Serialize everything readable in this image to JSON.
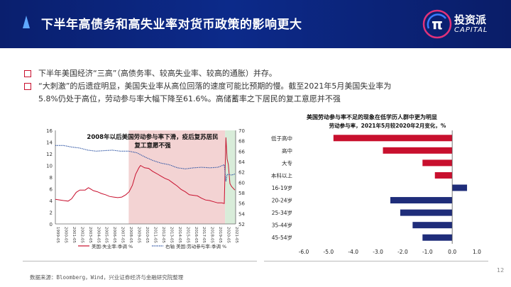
{
  "header": {
    "title": "下半年高债务和高失业率对货币政策的影响更大",
    "logo_cn": "投资派",
    "logo_en": "CAPITAL",
    "logo_mark": "π"
  },
  "bullets": [
    {
      "text": "下半年美国经济“三高”（高债务率、较高失业率、较高的通胀）并存。"
    },
    {
      "text": "“大刺激”的后遗症明显，美国失业率从高位回落的速度可能比预期的慢。截至2021年5月美国失业率为",
      "cont": "5.8%仍处于高位，劳动参与率大幅下降至61.6%。高储蓄率之下居民的复工意愿并不强"
    }
  ],
  "chart_data": [
    {
      "type": "line",
      "title": "2008年以后美国劳动参与率下滑，疫后复苏居民复工意愿不强",
      "x_ticks": [
        "1999-05",
        "2000-05",
        "2001-05",
        "2002-05",
        "2003-05",
        "2004-05",
        "2005-05",
        "2006-05",
        "2007-05",
        "2008-05",
        "2009-05",
        "2010-05",
        "2011-05",
        "2012-05",
        "2013-05",
        "2014-05",
        "2015-05",
        "2016-05",
        "2017-05",
        "2018-05",
        "2019-05",
        "2020-05",
        "2021-05"
      ],
      "y_left_ticks": [
        "0",
        "2",
        "4",
        "6",
        "8",
        "10",
        "12",
        "14",
        "16"
      ],
      "y_right_ticks": [
        "52",
        "54",
        "56",
        "58",
        "60",
        "62",
        "64",
        "66",
        "68",
        "70"
      ],
      "ylim_left": [
        0,
        16
      ],
      "ylim_right": [
        52,
        70
      ],
      "series": [
        {
          "name": "美国:失业率:季调 %",
          "axis": "left",
          "color": "#c8102e",
          "style": "solid",
          "x": [
            1999.33,
            2000.33,
            2000.9,
            2001.33,
            2001.9,
            2002.33,
            2003.0,
            2003.4,
            2004.0,
            2004.5,
            2005.0,
            2005.5,
            2006.0,
            2006.5,
            2007.0,
            2007.5,
            2008.0,
            2008.4,
            2008.8,
            2009.2,
            2009.6,
            2009.8,
            2010.3,
            2010.8,
            2011.3,
            2011.8,
            2012.3,
            2012.8,
            2013.3,
            2013.8,
            2014.3,
            2014.8,
            2015.3,
            2015.8,
            2016.3,
            2016.8,
            2017.3,
            2017.8,
            2018.3,
            2018.8,
            2019.3,
            2019.8,
            2020.1,
            2020.3,
            2020.45,
            2020.6,
            2020.8,
            2021.0,
            2021.2,
            2021.4
          ],
          "y": [
            4.2,
            4.0,
            3.9,
            4.3,
            5.4,
            5.8,
            5.8,
            6.2,
            5.7,
            5.5,
            5.2,
            5.0,
            4.7,
            4.6,
            4.5,
            4.6,
            5.0,
            5.5,
            6.6,
            8.5,
            9.6,
            10.0,
            9.6,
            9.5,
            9.0,
            8.6,
            8.2,
            7.8,
            7.5,
            7.0,
            6.5,
            5.9,
            5.5,
            5.0,
            4.9,
            4.8,
            4.4,
            4.1,
            4.0,
            3.8,
            3.6,
            3.6,
            3.5,
            14.8,
            11.1,
            10.2,
            6.9,
            6.4,
            6.1,
            5.8
          ]
        },
        {
          "name": "右轴 美国:劳动参与率:季调 %",
          "axis": "right",
          "color": "#2f55a4",
          "style": "dotted",
          "x": [
            1999.33,
            2000.33,
            2001.33,
            2002.33,
            2003.33,
            2004.33,
            2005.33,
            2006.33,
            2007.33,
            2008.33,
            2009.33,
            2010.33,
            2011.33,
            2012.33,
            2013.33,
            2014.33,
            2015.33,
            2016.33,
            2017.33,
            2018.33,
            2019.33,
            2020.1,
            2020.3,
            2020.45,
            2020.8,
            2021.0,
            2021.4
          ],
          "y": [
            67.1,
            67.1,
            66.8,
            66.6,
            66.2,
            66.0,
            66.1,
            66.2,
            66.0,
            66.0,
            65.7,
            64.9,
            64.2,
            63.7,
            63.4,
            62.8,
            62.6,
            62.8,
            62.9,
            62.8,
            62.9,
            63.4,
            60.2,
            61.5,
            61.5,
            61.4,
            61.6
          ]
        }
      ],
      "shaded_regions": [
        {
          "from": 2008.35,
          "to": 2020.2,
          "color": "#f3d3d3"
        },
        {
          "from": 2020.2,
          "to": 2021.5,
          "color": "#d8ecd9"
        }
      ]
    },
    {
      "type": "bar",
      "orientation": "horizontal",
      "title": "美国劳动参与率不足的现象在低学历人群中更为明显",
      "subtitle": "劳动参与率，2021年5月较2020年2月变化，%",
      "categories": [
        "低于高中",
        "高中",
        "大专",
        "本科以上",
        "16-19岁",
        "20-24岁",
        "25-34岁",
        "35-44岁",
        "45-54岁"
      ],
      "values": [
        -4.8,
        -2.8,
        -1.2,
        -0.7,
        0.6,
        -2.5,
        -2.1,
        -1.6,
        -1.2
      ],
      "colors": [
        "#c8102e",
        "#c8102e",
        "#c8102e",
        "#c8102e",
        "#1f2d7a",
        "#1f2d7a",
        "#1f2d7a",
        "#1f2d7a",
        "#1f2d7a"
      ],
      "x_ticks": [
        "-6.0",
        "-5.0",
        "-4.0",
        "-3.0",
        "-2.0",
        "-1.0",
        "0.0",
        "1.0"
      ],
      "xlim": [
        -6.0,
        1.0
      ]
    }
  ],
  "footer": {
    "source": "数据来源：Bloomberg，Wind，兴业证券经济与金融研究院整理",
    "page": "12"
  }
}
